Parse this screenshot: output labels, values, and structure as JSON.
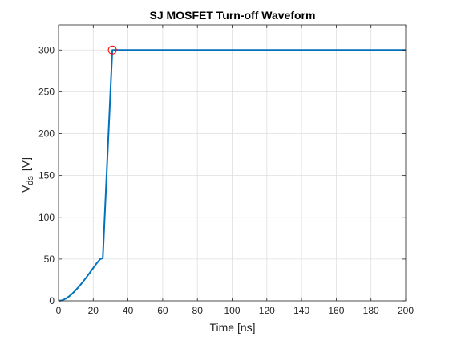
{
  "chart_data": {
    "type": "line",
    "title": "SJ MOSFET Turn-off Waveform",
    "xlabel": "Time [ns]",
    "ylabel": "V",
    "ylabel_subscript": "ds",
    "ylabel_unit": "[V]",
    "xlim": [
      0,
      200
    ],
    "ylim": [
      0,
      330
    ],
    "xticks": [
      0,
      20,
      40,
      60,
      80,
      100,
      120,
      140,
      160,
      180,
      200
    ],
    "yticks": [
      0,
      50,
      100,
      150,
      200,
      250,
      300
    ],
    "grid": true,
    "series": [
      {
        "color": "#0072BD",
        "x": [
          0,
          2,
          4,
          6,
          8,
          10,
          12,
          14,
          16,
          18,
          20,
          22,
          24,
          25.5,
          31,
          200
        ],
        "y": [
          0,
          0.6,
          2.4,
          5.2,
          8.8,
          13,
          17.6,
          22.6,
          28,
          33.6,
          39.4,
          45,
          50,
          51,
          300,
          300
        ]
      }
    ],
    "annotations": [
      {
        "type": "circle-marker",
        "x": 31,
        "y": 300,
        "color": "#ff0000"
      }
    ]
  }
}
